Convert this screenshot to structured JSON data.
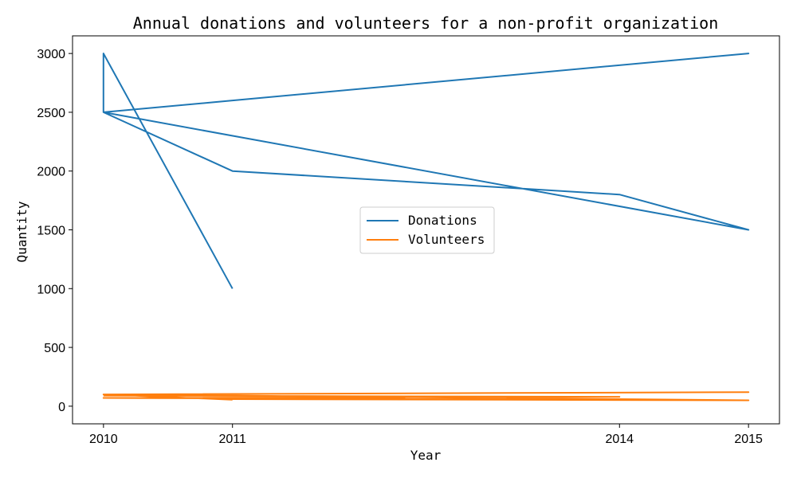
{
  "chart_data": {
    "type": "line",
    "title": "Annual donations and volunteers for a non-profit organization",
    "xlabel": "Year",
    "ylabel": "Quantity",
    "xlim": [
      2009.76,
      2015.24
    ],
    "ylim": [
      -150,
      3150
    ],
    "xticks": [
      2010,
      2011,
      2014,
      2015
    ],
    "xtick_labels": [
      "2010",
      "2011",
      "2014",
      "2015"
    ],
    "yticks": [
      0,
      500,
      1000,
      1500,
      2000,
      2500,
      3000
    ],
    "ytick_labels": [
      "0",
      "500",
      "1000",
      "1500",
      "2000",
      "2500",
      "3000"
    ],
    "grid": false,
    "legend_position": "center",
    "series": [
      {
        "name": "Donations",
        "color": "#1f77b4",
        "points": [
          [
            2011,
            1000
          ],
          [
            2010,
            3000
          ],
          [
            2010,
            2500
          ],
          [
            2015,
            3000
          ],
          [
            2010,
            2500
          ],
          [
            2011,
            2000
          ],
          [
            2014,
            1800
          ],
          [
            2015,
            1500
          ],
          [
            2010,
            2500
          ]
        ]
      },
      {
        "name": "Volunteers",
        "color": "#ff7f0e",
        "points": [
          [
            2011,
            55
          ],
          [
            2010,
            100
          ],
          [
            2015,
            120
          ],
          [
            2010,
            100
          ],
          [
            2015,
            50
          ],
          [
            2011,
            60
          ],
          [
            2014,
            55
          ],
          [
            2015,
            50
          ],
          [
            2010,
            70
          ],
          [
            2014,
            80
          ],
          [
            2010,
            90
          ]
        ]
      }
    ]
  }
}
